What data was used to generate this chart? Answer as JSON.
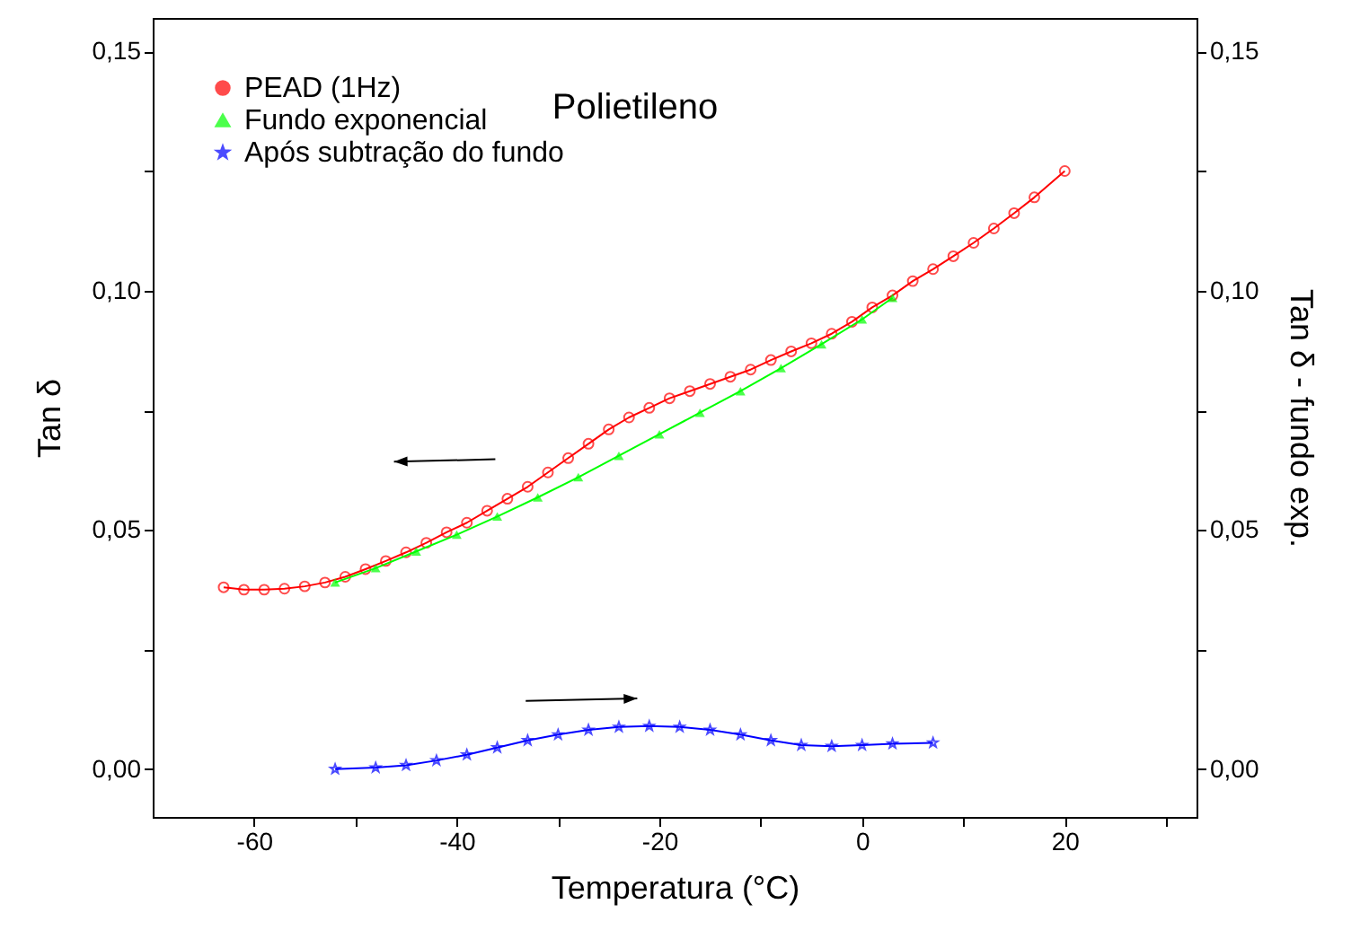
{
  "chart_data": {
    "type": "line",
    "title": "Polietileno",
    "xlabel": "Temperatura (°C)",
    "ylabel": "Tan δ",
    "y2label": "Tan δ - fundo exp.",
    "xlim": [
      -70,
      33
    ],
    "xticks": [
      -60,
      {
        "value": -50,
        "label": null
      },
      -40,
      {
        "value": -30,
        "label": null
      },
      -20,
      {
        "value": -10,
        "label": null
      },
      0,
      {
        "value": 10,
        "label": null
      },
      20,
      {
        "value": 30,
        "label": null
      }
    ],
    "ylim": [
      -0.01,
      0.157
    ],
    "yticks": [
      {
        "value": 0,
        "label": "0,00"
      },
      {
        "value": 0.025,
        "label": null
      },
      {
        "value": 0.05,
        "label": "0,05"
      },
      {
        "value": 0.075,
        "label": null
      },
      {
        "value": 0.1,
        "label": "0,10"
      },
      {
        "value": 0.125,
        "label": null
      },
      {
        "value": 0.15,
        "label": "0,15"
      }
    ],
    "y2lim": [
      -0.01,
      0.157
    ],
    "y2ticks": [
      {
        "value": 0,
        "label": "0,00"
      },
      {
        "value": 0.025,
        "label": null
      },
      {
        "value": 0.05,
        "label": "0,05"
      },
      {
        "value": 0.075,
        "label": null
      },
      {
        "value": 0.1,
        "label": "0,10"
      },
      {
        "value": 0.125,
        "label": null
      },
      {
        "value": 0.15,
        "label": "0,15"
      }
    ],
    "legend": "top left",
    "line_style": "solid",
    "series": [
      {
        "name": "PEAD (1Hz)",
        "color": "#ff0000",
        "marker": "circle",
        "x": [
          -63,
          -61,
          -59,
          -57,
          -55,
          -53,
          -51,
          -49,
          -47,
          -45,
          -43,
          -41,
          -39,
          -37,
          -35,
          -33,
          -31,
          -29,
          -27,
          -25,
          -23,
          -21,
          -19,
          -17,
          -15,
          -13,
          -11,
          -9,
          -7,
          -5,
          -3,
          -1,
          1,
          3,
          5,
          7,
          9,
          11,
          13,
          15,
          17,
          20
        ],
        "values": [
          0.038,
          0.0375,
          0.0375,
          0.0377,
          0.0382,
          0.039,
          0.0402,
          0.0418,
          0.0435,
          0.0453,
          0.0473,
          0.0495,
          0.0515,
          0.054,
          0.0565,
          0.059,
          0.062,
          0.065,
          0.068,
          0.071,
          0.0735,
          0.0755,
          0.0775,
          0.079,
          0.0805,
          0.082,
          0.0835,
          0.0855,
          0.0873,
          0.089,
          0.091,
          0.0935,
          0.0965,
          0.099,
          0.102,
          0.1045,
          0.1072,
          0.11,
          0.113,
          0.1162,
          0.1195,
          0.125
        ]
      },
      {
        "name": "Fundo exponencial",
        "color": "#00ff00",
        "marker": "triangle",
        "x": [
          -52,
          -48,
          -44,
          -40,
          -36,
          -32,
          -28,
          -24,
          -20,
          -16,
          -12,
          -8,
          -4,
          0,
          3
        ],
        "values": [
          0.039,
          0.042,
          0.0455,
          0.049,
          0.0528,
          0.0568,
          0.061,
          0.0655,
          0.07,
          0.0745,
          0.079,
          0.0838,
          0.0888,
          0.094,
          0.0985
        ]
      },
      {
        "name": "Após subtração do fundo",
        "color": "#0000ff",
        "marker": "star",
        "axis": "y2",
        "x": [
          -52,
          -48,
          -45,
          -42,
          -39,
          -36,
          -33,
          -30,
          -27,
          -24,
          -21,
          -18,
          -15,
          -12,
          -9,
          -6,
          -3,
          0,
          3,
          7
        ],
        "values": [
          0.0,
          0.0003,
          0.0008,
          0.0018,
          0.003,
          0.0045,
          0.006,
          0.0072,
          0.0082,
          0.0088,
          0.009,
          0.0088,
          0.0082,
          0.0072,
          0.006,
          0.005,
          0.0048,
          0.005,
          0.0053,
          0.0055
        ]
      }
    ]
  }
}
